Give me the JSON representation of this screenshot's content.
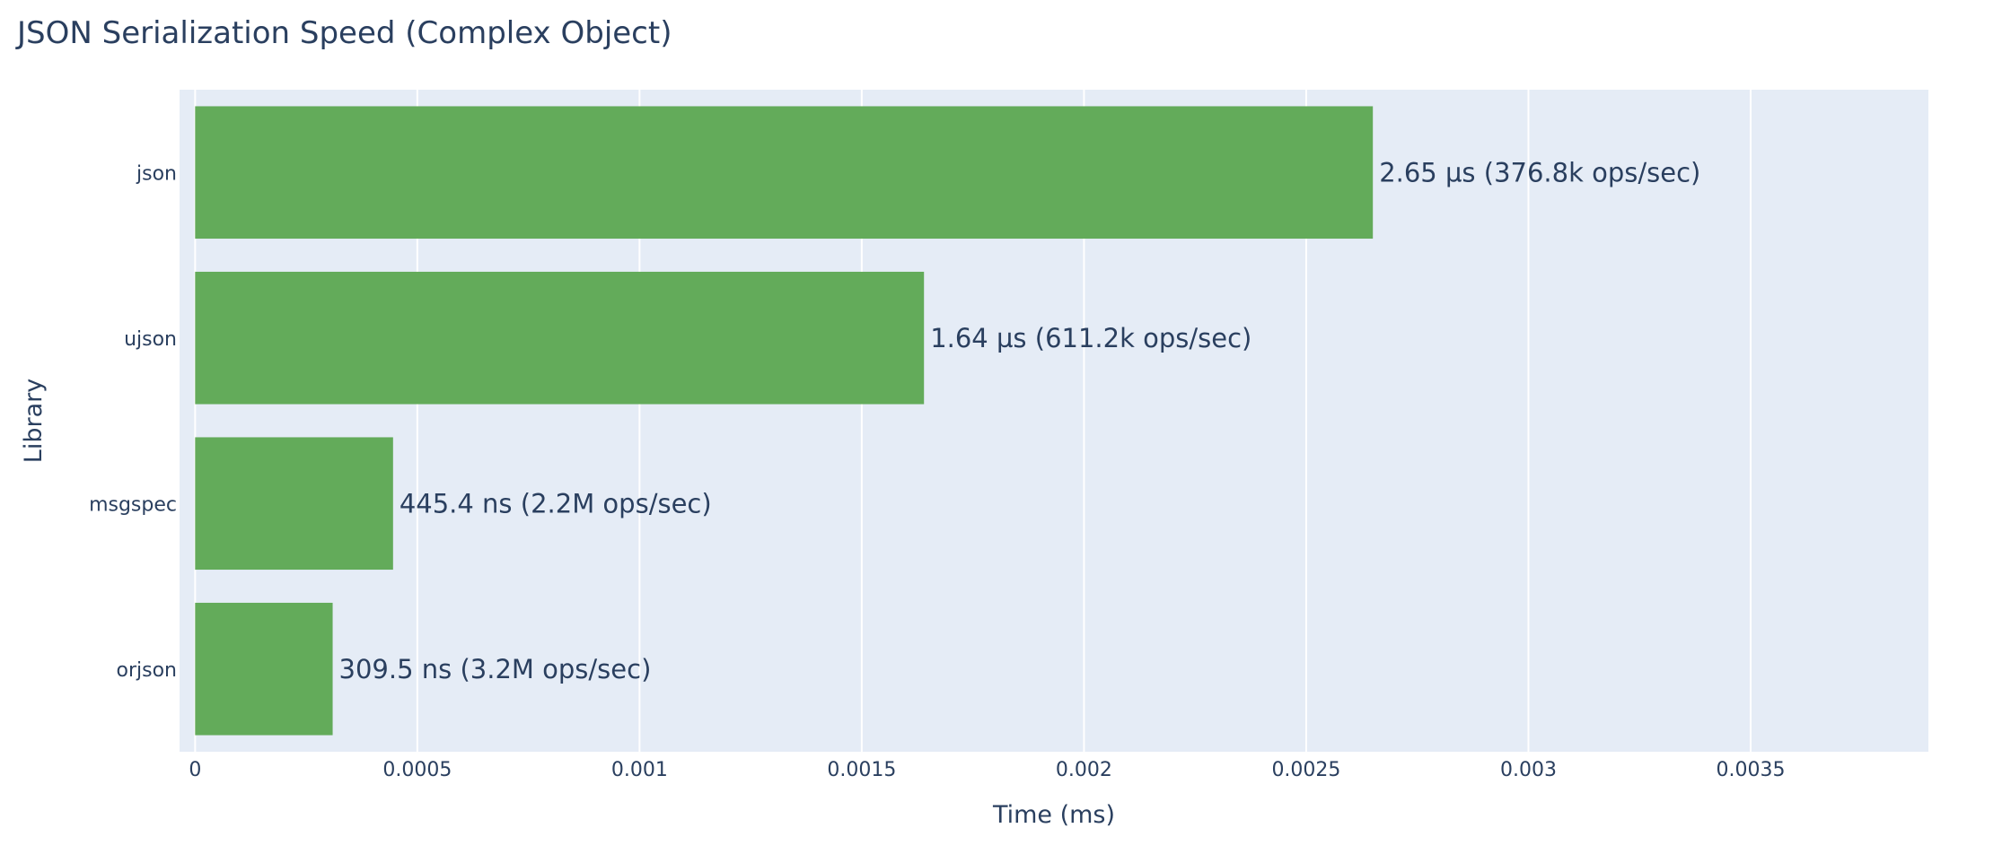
{
  "chart_data": {
    "type": "bar",
    "orientation": "horizontal",
    "title": "JSON Serialization Speed (Complex Object)",
    "xlabel": "Time (ms)",
    "ylabel": "Library",
    "xlim": [
      -3.5e-05,
      0.0039
    ],
    "xticks": [
      0,
      0.0005,
      0.001,
      0.0015,
      0.002,
      0.0025,
      0.003,
      0.0035
    ],
    "xtick_labels": [
      "0",
      "0.0005",
      "0.001",
      "0.0015",
      "0.002",
      "0.0025",
      "0.003",
      "0.0035"
    ],
    "categories": [
      "json",
      "ujson",
      "msgspec",
      "orjson"
    ],
    "values": [
      0.00265,
      0.00164,
      0.0004454,
      0.0003095
    ],
    "data_labels": [
      "2.65 µs (376.8k ops/sec)",
      "1.64 µs (611.2k ops/sec)",
      "445.4 ns (2.2M ops/sec)",
      "309.5 ns (3.2M ops/sec)"
    ],
    "grid": true,
    "legend": false,
    "colors": {
      "bar": "#63ab5a",
      "plot_background": "#e5ecf6",
      "grid": "#ffffff",
      "text": "#2a3f5f",
      "page_background": "#ffffff"
    }
  }
}
